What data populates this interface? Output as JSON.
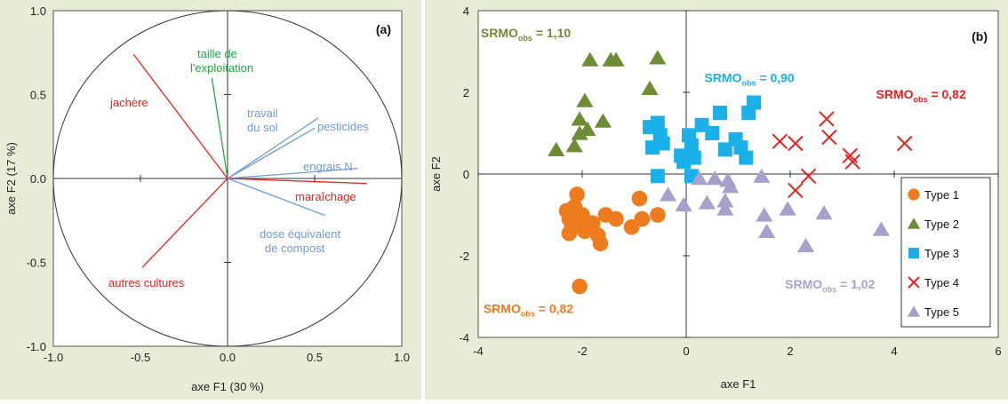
{
  "chart_data": [
    {
      "type": "scatter",
      "label": "(a)",
      "xlabel": "axe F1 (30 %)",
      "ylabel": "axe F2 (17  %)",
      "xlim": [
        -1.0,
        1.0
      ],
      "ylim": [
        -1.0,
        1.0
      ],
      "xticks": [
        "-1.0",
        "-0.5",
        "0.0",
        "0.5",
        "1.0"
      ],
      "yticks": [
        "1.0",
        "0.5",
        "0.0",
        "-0.5",
        "-1.0"
      ],
      "colors": {
        "red": "#e8231e",
        "green": "#22a845",
        "blue": "#6f9bd6"
      },
      "vectors": [
        {
          "label": "taille de",
          "label2": "l'exploitation",
          "x": -0.09,
          "y": 0.6,
          "color": "green"
        },
        {
          "label": "jachère",
          "x": -0.54,
          "y": 0.74,
          "color": "red"
        },
        {
          "label": "travail",
          "label2": "du sol",
          "x": 0.5,
          "y": 0.3,
          "color": "blue"
        },
        {
          "label": "pesticides",
          "x": 0.52,
          "y": 0.36,
          "color": "blue"
        },
        {
          "label": "engrais N",
          "x": 0.75,
          "y": 0.06,
          "color": "blue"
        },
        {
          "label": "maraîchage",
          "x": 0.8,
          "y": -0.03,
          "color": "red"
        },
        {
          "label": "dose équivalent",
          "label2": "de compost",
          "x": 0.56,
          "y": -0.22,
          "color": "blue"
        },
        {
          "label": "autres cultures",
          "x": -0.49,
          "y": -0.53,
          "color": "red"
        }
      ]
    },
    {
      "type": "scatter",
      "label": "(b)",
      "xlabel": "axe F1",
      "ylabel": "axe F2",
      "xlim": [
        -4,
        6
      ],
      "ylim": [
        -4,
        4
      ],
      "xticks": [
        "-4",
        "-2",
        "0",
        "2",
        "4",
        "6"
      ],
      "yticks": [
        "4",
        "2",
        "0",
        "-2",
        "-4"
      ],
      "series": [
        {
          "name": "Type 1",
          "marker": "circle",
          "color": "#ee7b1e",
          "points": [
            [
              -2.1,
              -0.5
            ],
            [
              -2.15,
              -0.8
            ],
            [
              -2.3,
              -0.9
            ],
            [
              -2.25,
              -1.1
            ],
            [
              -2.2,
              -1.3
            ],
            [
              -2.25,
              -1.45
            ],
            [
              -2.0,
              -1.0
            ],
            [
              -2.05,
              -1.2
            ],
            [
              -1.8,
              -1.2
            ],
            [
              -1.95,
              -1.4
            ],
            [
              -1.7,
              -1.5
            ],
            [
              -1.65,
              -1.7
            ],
            [
              -1.55,
              -1.0
            ],
            [
              -1.35,
              -1.1
            ],
            [
              -1.05,
              -1.3
            ],
            [
              -0.85,
              -1.1
            ],
            [
              -0.9,
              -0.6
            ],
            [
              -0.55,
              -1.0
            ],
            [
              -2.05,
              -2.75
            ]
          ]
        },
        {
          "name": "Type 2",
          "marker": "triangle",
          "color": "#6e8c35",
          "points": [
            [
              -1.85,
              2.8
            ],
            [
              -1.45,
              2.8
            ],
            [
              -1.35,
              2.8
            ],
            [
              -0.55,
              2.85
            ],
            [
              -0.7,
              2.1
            ],
            [
              -1.95,
              1.8
            ],
            [
              -2.05,
              1.35
            ],
            [
              -1.6,
              1.3
            ],
            [
              -1.9,
              1.1
            ],
            [
              -2.05,
              1.0
            ],
            [
              -2.15,
              0.7
            ],
            [
              -2.5,
              0.6
            ]
          ]
        },
        {
          "name": "Type 3",
          "marker": "square",
          "color": "#1cb0ea",
          "points": [
            [
              -0.55,
              1.25
            ],
            [
              -0.7,
              1.15
            ],
            [
              -0.5,
              0.95
            ],
            [
              -0.65,
              0.65
            ],
            [
              -0.45,
              0.75
            ],
            [
              -0.1,
              0.45
            ],
            [
              0.05,
              0.95
            ],
            [
              0.1,
              0.7
            ],
            [
              0.3,
              1.2
            ],
            [
              0.5,
              1.0
            ],
            [
              0.65,
              1.5
            ],
            [
              1.2,
              1.5
            ],
            [
              1.3,
              1.75
            ],
            [
              0.95,
              0.85
            ],
            [
              1.05,
              0.65
            ],
            [
              0.75,
              0.6
            ],
            [
              0.15,
              0.4
            ],
            [
              -0.05,
              0.3
            ],
            [
              0.1,
              -0.05
            ],
            [
              1.15,
              0.4
            ],
            [
              -0.55,
              -0.05
            ]
          ]
        },
        {
          "name": "Type 4",
          "marker": "cross",
          "color": "#e8231e",
          "points": [
            [
              1.8,
              0.8
            ],
            [
              2.1,
              0.75
            ],
            [
              2.7,
              1.35
            ],
            [
              2.75,
              0.9
            ],
            [
              3.15,
              0.45
            ],
            [
              3.2,
              0.3
            ],
            [
              4.2,
              0.75
            ],
            [
              2.35,
              -0.05
            ],
            [
              2.1,
              -0.4
            ]
          ]
        },
        {
          "name": "Type 5",
          "marker": "triangle",
          "color": "#a99fcc",
          "points": [
            [
              0.25,
              -0.1
            ],
            [
              0.55,
              -0.1
            ],
            [
              0.8,
              -0.15
            ],
            [
              0.85,
              -0.3
            ],
            [
              1.45,
              -0.05
            ],
            [
              -0.35,
              -0.5
            ],
            [
              -0.05,
              -0.75
            ],
            [
              0.4,
              -0.7
            ],
            [
              0.75,
              -0.65
            ],
            [
              0.75,
              -0.85
            ],
            [
              1.5,
              -1.0
            ],
            [
              1.55,
              -1.4
            ],
            [
              1.95,
              -0.85
            ],
            [
              2.3,
              -1.75
            ],
            [
              2.65,
              -0.95
            ],
            [
              3.75,
              -1.35
            ]
          ]
        }
      ],
      "legend": [
        "Type 1",
        "Type 2",
        "Type 3",
        "Type 4",
        "Type 5"
      ],
      "annotations": [
        {
          "main": "SRMO",
          "sub": "obs",
          "rest": " = 1,10",
          "color": "#6e8c35",
          "x": -3.95,
          "y": 3.35
        },
        {
          "main": "SRMO",
          "sub": "obs",
          "rest": " = 0,90",
          "color": "#1cb0ea",
          "x": 0.35,
          "y": 2.25
        },
        {
          "main": "SRMO",
          "sub": "obs",
          "rest": " = 0,82",
          "color": "#e8231e",
          "x": 3.65,
          "y": 1.85
        },
        {
          "main": "SRMO",
          "sub": "obs",
          "rest": " = 1,02",
          "color": "#a99fcc",
          "x": 1.9,
          "y": -2.8
        },
        {
          "main": "SRMO",
          "sub": "obs",
          "rest": " = 0,82",
          "color": "#ee7b1e",
          "x": -3.9,
          "y": -3.4
        }
      ]
    }
  ]
}
